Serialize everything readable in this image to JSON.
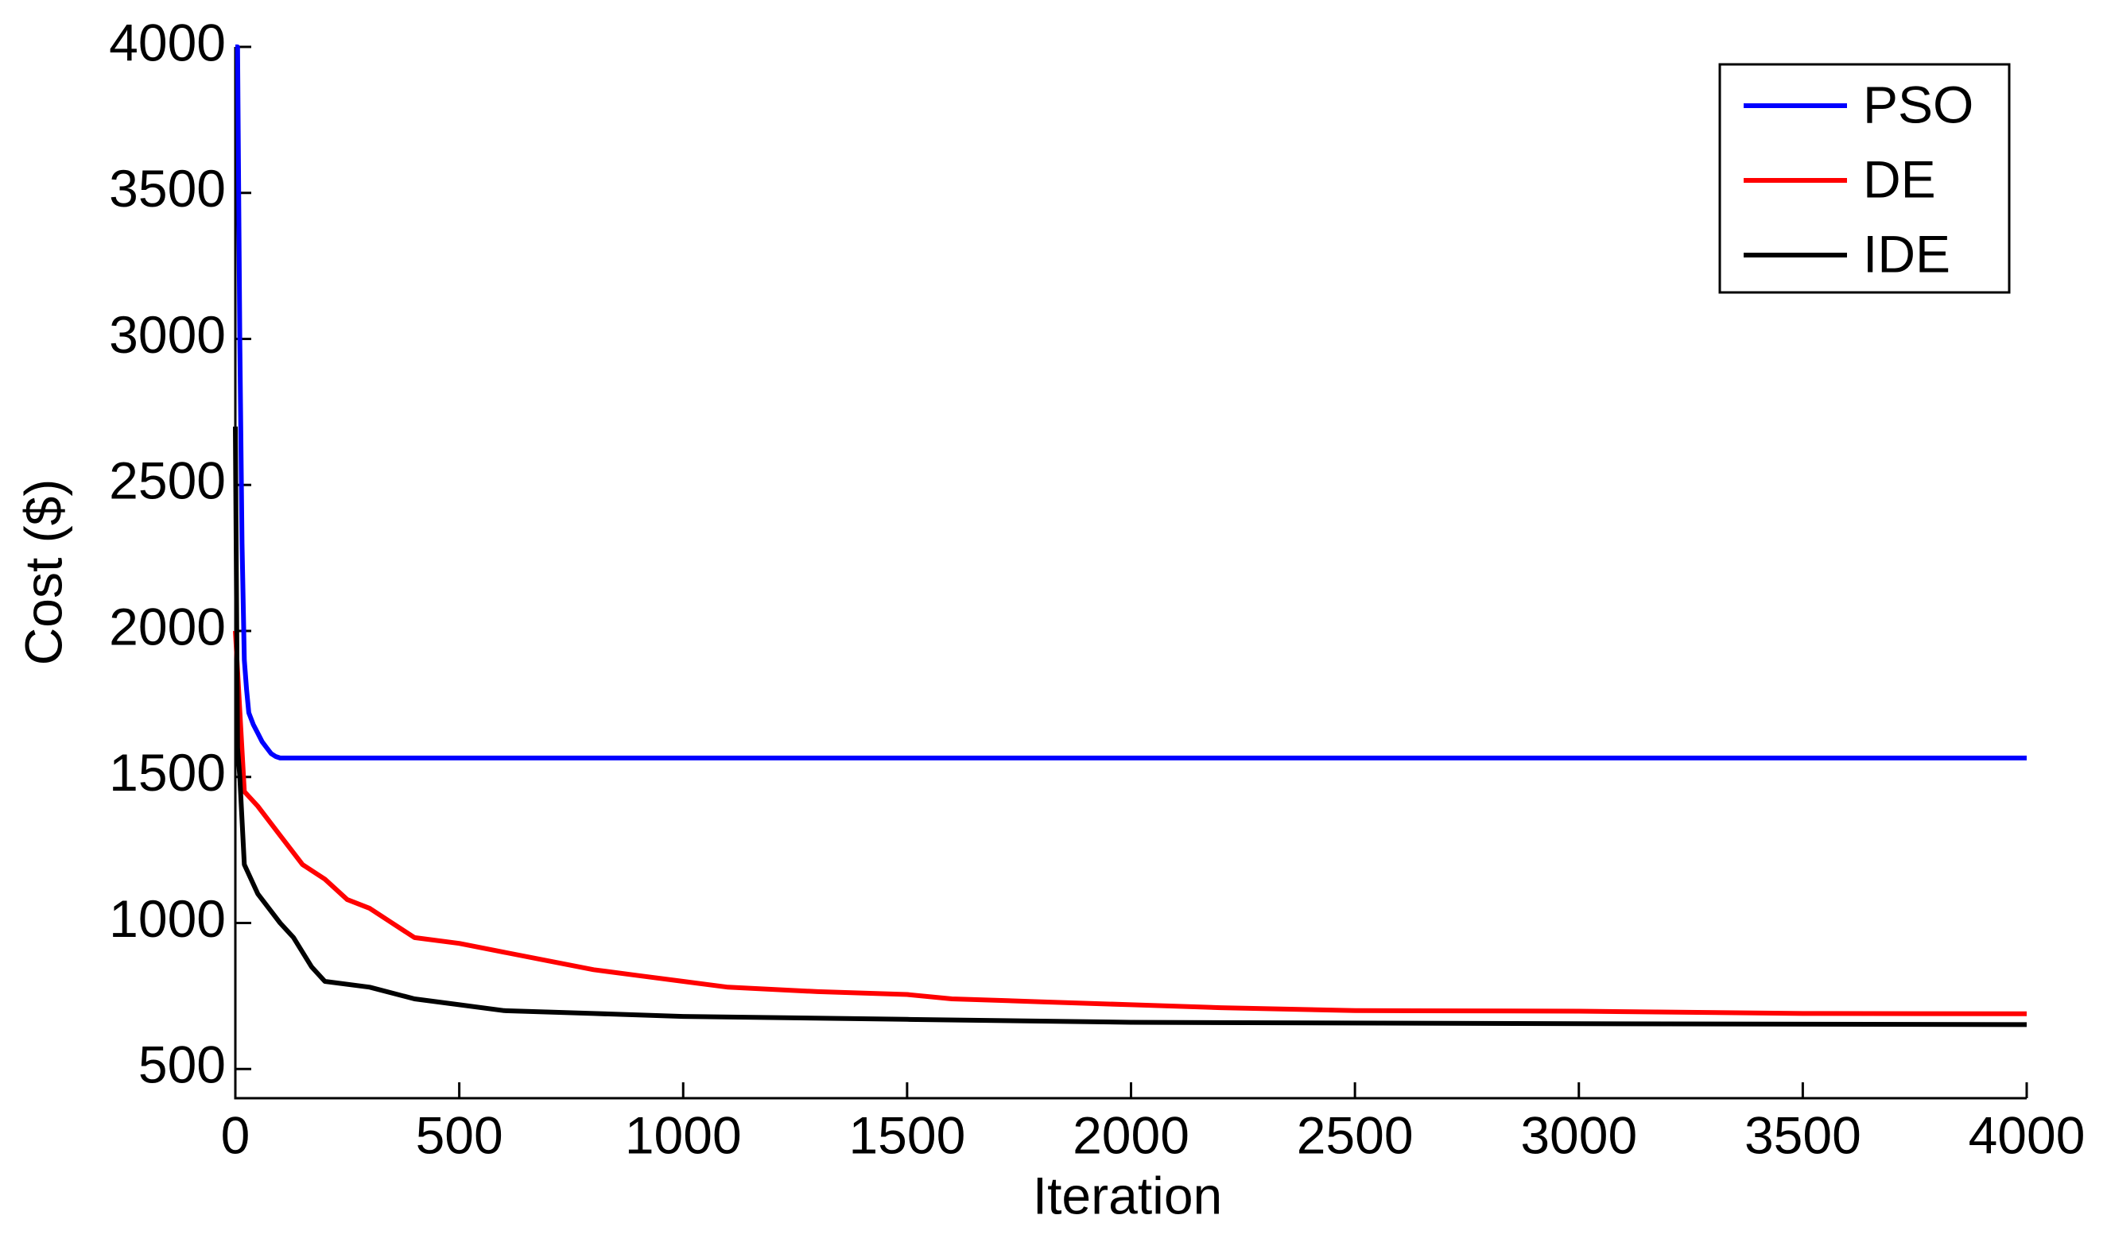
{
  "chart_data": {
    "type": "line",
    "xlabel": "Iteration",
    "ylabel": "Cost ($)",
    "xlim": [
      0,
      4000
    ],
    "xticks": [
      0,
      500,
      1000,
      1500,
      2000,
      2500,
      3000,
      3500,
      4000
    ],
    "ylim": [
      400,
      4000
    ],
    "yticks": [
      500,
      1000,
      1500,
      2000,
      2500,
      3000,
      3500,
      4000
    ],
    "legend": "upper right",
    "series": [
      {
        "name": "PSO",
        "color": "#0000ff",
        "x": [
          0,
          5,
          10,
          15,
          20,
          25,
          30,
          40,
          50,
          60,
          70,
          80,
          90,
          100,
          4000
        ],
        "values": [
          4000,
          4000,
          3000,
          2300,
          1900,
          1800,
          1720,
          1680,
          1650,
          1620,
          1600,
          1580,
          1570,
          1565,
          1565
        ]
      },
      {
        "name": "DE",
        "color": "#ff0000",
        "x": [
          0,
          20,
          50,
          100,
          150,
          200,
          250,
          300,
          350,
          400,
          500,
          600,
          700,
          800,
          900,
          1000,
          1100,
          1300,
          1500,
          1600,
          1800,
          2000,
          2200,
          2500,
          3000,
          3500,
          4000
        ],
        "values": [
          2000,
          1450,
          1400,
          1300,
          1200,
          1150,
          1080,
          1050,
          1000,
          950,
          930,
          900,
          870,
          840,
          820,
          800,
          780,
          765,
          755,
          740,
          730,
          720,
          710,
          700,
          698,
          690,
          689
        ]
      },
      {
        "name": "IDE",
        "color": "#000000",
        "x": [
          0,
          5,
          10,
          20,
          50,
          100,
          130,
          170,
          200,
          300,
          400,
          500,
          600,
          800,
          1000,
          1500,
          2000,
          3000,
          4000
        ],
        "values": [
          2700,
          1600,
          1500,
          1200,
          1100,
          1000,
          950,
          850,
          800,
          780,
          740,
          720,
          700,
          690,
          680,
          670,
          660,
          655,
          652
        ]
      }
    ]
  }
}
